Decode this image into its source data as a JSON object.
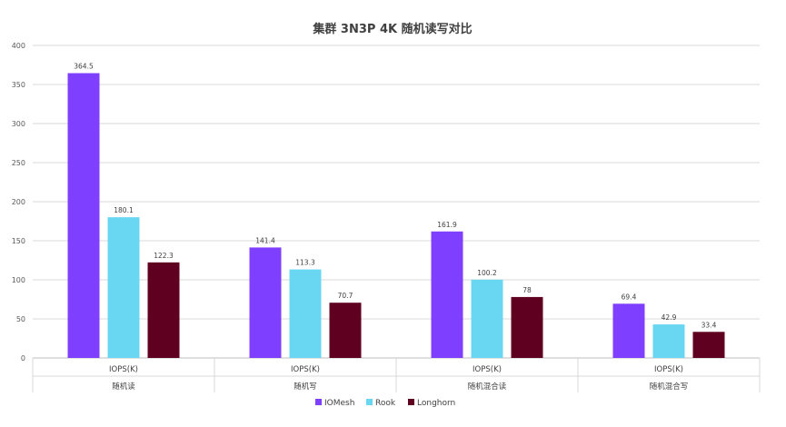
{
  "chart_data": {
    "type": "bar",
    "title": "集群 3N3P 4K 随机读写对比",
    "groups": [
      "随机读",
      "随机写",
      "随机混合读",
      "随机混合写"
    ],
    "categories": [
      "IOPS(K)",
      "IOPS(K)",
      "IOPS(K)",
      "IOPS(K)"
    ],
    "series": [
      {
        "name": "IOMesh",
        "color": "#7F3FFF",
        "values": [
          364.5,
          141.4,
          161.9,
          69.4
        ]
      },
      {
        "name": "Rook",
        "color": "#69D7F2",
        "values": [
          180.1,
          113.3,
          100.2,
          42.9
        ]
      },
      {
        "name": "Longhorn",
        "color": "#600020",
        "values": [
          122.3,
          70.7,
          78,
          33.4
        ]
      }
    ],
    "ylim": [
      0,
      400
    ],
    "yticks": [
      0,
      50,
      100,
      150,
      200,
      250,
      300,
      350,
      400
    ],
    "xlabel": "",
    "ylabel": "",
    "grid": true,
    "legend": "bottom"
  }
}
